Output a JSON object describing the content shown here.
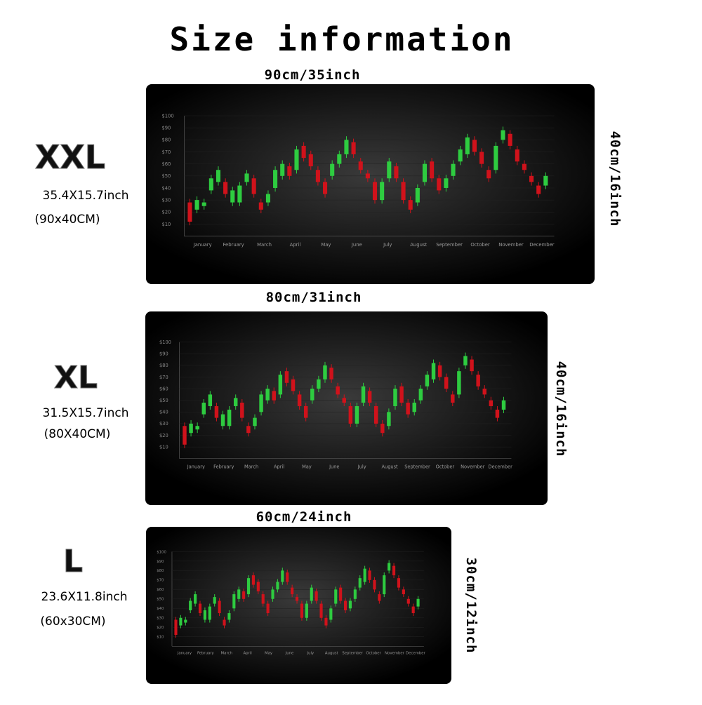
{
  "title": "Size information",
  "sizes": [
    {
      "name": "XXL",
      "inch": "35.4X15.7inch",
      "cm": "(90x40CM)",
      "width_label": "90cm/35inch",
      "height_label": "40cm/16inch"
    },
    {
      "name": "XL",
      "inch": "31.5X15.7inch",
      "cm": "(80X40CM)",
      "width_label": "80cm/31inch",
      "height_label": "40cm/16inch"
    },
    {
      "name": "L",
      "inch": "23.6X11.8inch",
      "cm": "(60x30CM)",
      "width_label": "60cm/24inch",
      "height_label": "30cm/12inch"
    }
  ],
  "pad_chart": {
    "type": "candlestick",
    "up_color": "#2ecc40",
    "down_color": "#d0121b",
    "ylim": [
      0,
      100
    ],
    "yticks": [
      {
        "value": 10,
        "label": "$10"
      },
      {
        "value": 20,
        "label": "$20"
      },
      {
        "value": 30,
        "label": "$30"
      },
      {
        "value": 40,
        "label": "$40"
      },
      {
        "value": 50,
        "label": "$50"
      },
      {
        "value": 60,
        "label": "$60"
      },
      {
        "value": 70,
        "label": "$70"
      },
      {
        "value": 80,
        "label": "$80"
      },
      {
        "value": 90,
        "label": "$90"
      },
      {
        "value": 100,
        "label": "$100"
      }
    ],
    "categories": [
      "January",
      "February",
      "March",
      "April",
      "May",
      "June",
      "July",
      "August",
      "September",
      "October",
      "November",
      "December"
    ],
    "open": [
      28,
      22,
      25,
      38,
      45,
      45,
      28,
      28,
      45,
      48,
      28,
      28,
      40,
      50,
      58,
      55,
      75,
      68,
      55,
      45,
      50,
      60,
      68,
      78,
      62,
      52,
      45,
      30,
      48,
      58,
      45,
      30,
      28,
      45,
      62,
      48,
      40,
      50,
      62,
      68,
      80,
      70,
      55,
      55,
      80,
      85,
      72,
      60,
      50,
      42,
      42
    ],
    "close": [
      12,
      30,
      28,
      48,
      55,
      35,
      38,
      42,
      52,
      35,
      22,
      35,
      55,
      60,
      50,
      72,
      65,
      58,
      45,
      35,
      60,
      68,
      80,
      68,
      55,
      48,
      30,
      45,
      62,
      48,
      30,
      22,
      40,
      60,
      48,
      38,
      48,
      60,
      72,
      82,
      70,
      60,
      48,
      75,
      88,
      75,
      62,
      55,
      45,
      35,
      50
    ],
    "high": [
      31,
      33,
      31,
      51,
      58,
      48,
      41,
      45,
      55,
      51,
      31,
      38,
      58,
      63,
      61,
      75,
      78,
      71,
      58,
      48,
      63,
      71,
      83,
      81,
      65,
      55,
      48,
      48,
      65,
      61,
      48,
      33,
      43,
      63,
      65,
      51,
      51,
      63,
      75,
      85,
      83,
      73,
      58,
      78,
      91,
      88,
      75,
      63,
      53,
      45,
      53
    ],
    "low": [
      9,
      19,
      22,
      35,
      42,
      32,
      25,
      25,
      42,
      32,
      19,
      25,
      37,
      47,
      47,
      52,
      62,
      55,
      42,
      32,
      47,
      57,
      65,
      65,
      52,
      45,
      27,
      27,
      45,
      45,
      27,
      19,
      25,
      42,
      45,
      35,
      37,
      47,
      59,
      65,
      67,
      57,
      45,
      52,
      77,
      72,
      59,
      52,
      42,
      32,
      39
    ]
  }
}
